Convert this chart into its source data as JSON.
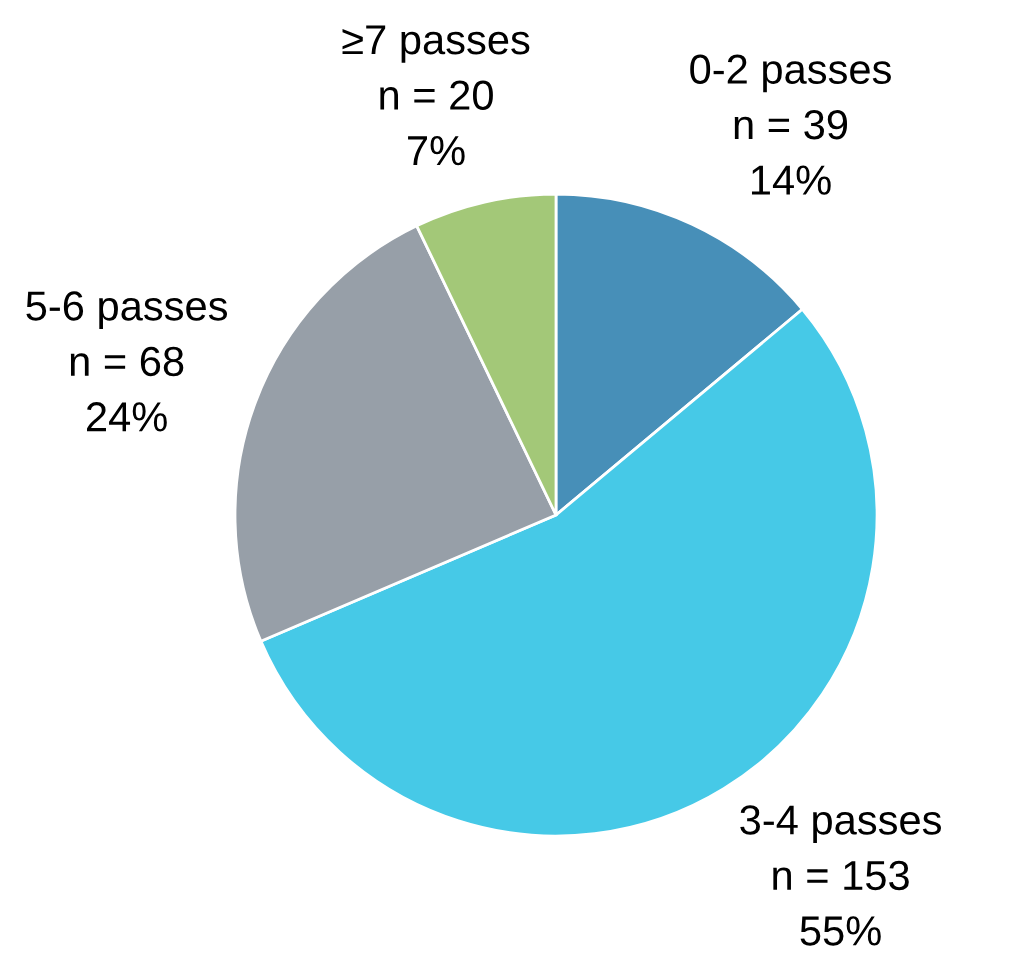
{
  "chart_data": {
    "type": "pie",
    "categories": [
      "0-2 passes",
      "3-4 passes",
      "5-6 passes",
      "≥7 passes"
    ],
    "values": [
      39,
      153,
      68,
      20
    ],
    "colors": [
      "#478fb8",
      "#46c9e7",
      "#979fa8",
      "#a3c878"
    ],
    "value_labels": [
      "n = 39\n14%",
      "n = 153\n55%",
      "n = 68\n24%",
      "n = 20\n7%"
    ]
  }
}
